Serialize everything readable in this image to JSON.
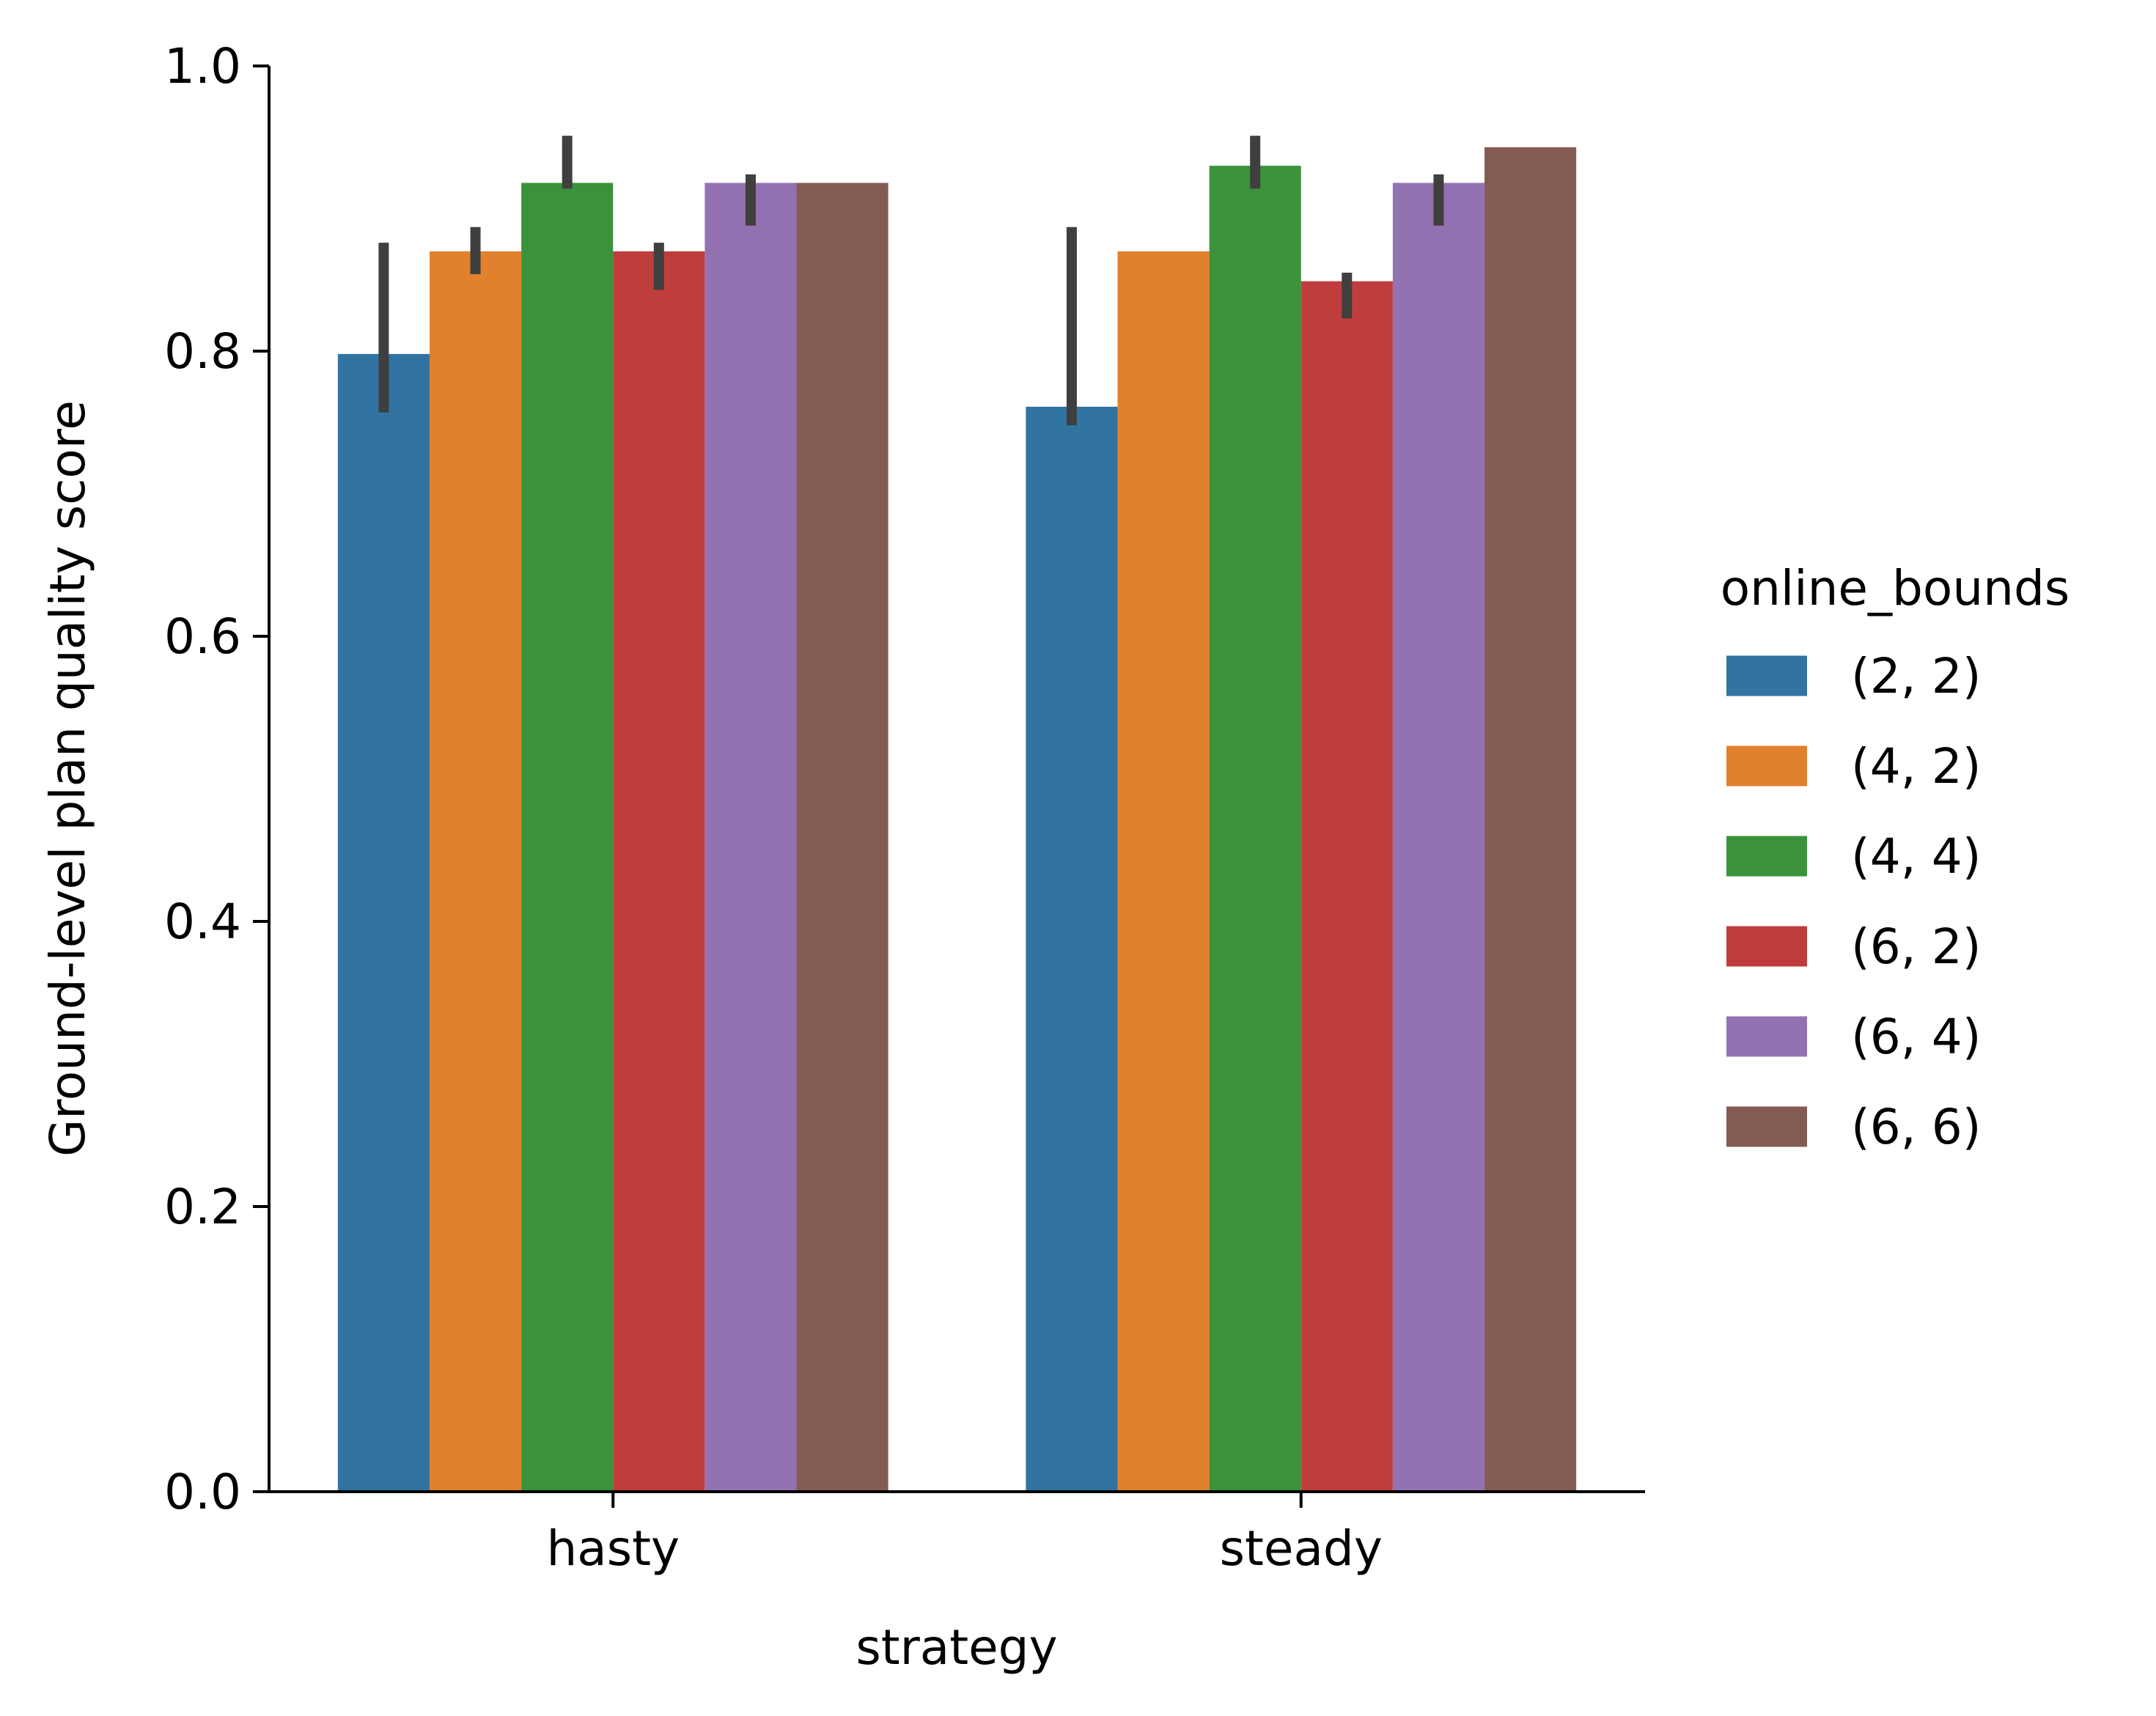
{
  "chart_data": {
    "type": "bar",
    "title": "",
    "xlabel": "strategy",
    "ylabel": "Ground-level plan quality score",
    "ylim": [
      0,
      1.0
    ],
    "y_ticks": [
      "0.0",
      "0.2",
      "0.4",
      "0.6",
      "0.8",
      "1.0"
    ],
    "categories": [
      "hasty",
      "steady"
    ],
    "grid": false,
    "legend": {
      "title": "online_bounds",
      "placement": "right"
    },
    "series": [
      {
        "name": "(2, 2)",
        "color": "#3274a1",
        "values": [
          0.798,
          0.761
        ],
        "ci": [
          [
            0.757,
            0.876
          ],
          [
            0.748,
            0.887
          ]
        ]
      },
      {
        "name": "(4, 2)",
        "color": "#e1812c",
        "values": [
          0.87,
          0.87
        ],
        "ci": [
          [
            0.854,
            0.887
          ],
          null
        ]
      },
      {
        "name": "(4, 4)",
        "color": "#3a923a",
        "values": [
          0.918,
          0.93
        ],
        "ci": [
          [
            0.914,
            0.951
          ],
          [
            0.914,
            0.951
          ]
        ]
      },
      {
        "name": "(6, 2)",
        "color": "#c03d3e",
        "values": [
          0.87,
          0.849
        ],
        "ci": [
          [
            0.843,
            0.876
          ],
          [
            0.823,
            0.855
          ]
        ]
      },
      {
        "name": "(6, 4)",
        "color": "#9372b2",
        "values": [
          0.918,
          0.918
        ],
        "ci": [
          [
            0.888,
            0.924
          ],
          [
            0.888,
            0.924
          ]
        ]
      },
      {
        "name": "(6, 6)",
        "color": "#845b53",
        "values": [
          0.918,
          0.943
        ],
        "ci": [
          null,
          null
        ]
      }
    ]
  }
}
